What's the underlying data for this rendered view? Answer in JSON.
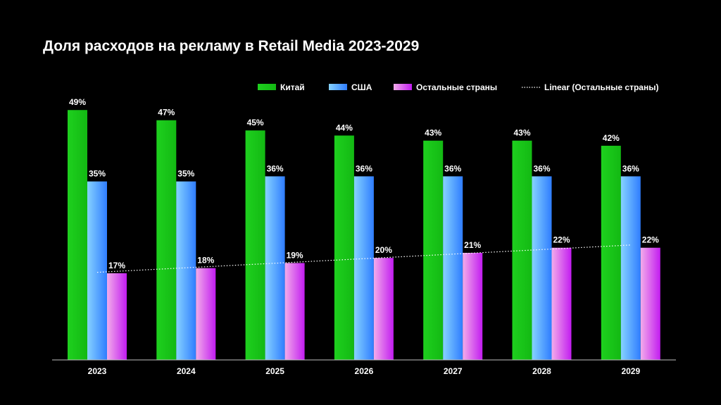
{
  "title": "Доля расходов на рекламу в Retail Media 2023-2029",
  "chart_data": {
    "type": "bar",
    "title": "Доля расходов на рекламу в Retail Media 2023-2029",
    "categories": [
      "2023",
      "2024",
      "2025",
      "2026",
      "2027",
      "2028",
      "2029"
    ],
    "ylim": [
      0,
      50
    ],
    "grid": false,
    "legend_position": "top-right",
    "value_suffix": "%",
    "series": [
      {
        "name": "Китай",
        "values": [
          49,
          47,
          45,
          44,
          43,
          43,
          42
        ],
        "color": "#13b913",
        "color_light": "#1ed01e"
      },
      {
        "name": "США",
        "values": [
          35,
          35,
          36,
          36,
          36,
          36,
          36
        ],
        "color": "#2f7dff",
        "color_light": "#86d2ff"
      },
      {
        "name": "Остальные страны",
        "values": [
          17,
          18,
          19,
          20,
          21,
          22,
          22
        ],
        "color": "#c21cf0",
        "color_light": "#f2acea"
      }
    ],
    "trendline": {
      "name": "Linear (Остальные страны)",
      "series": "Остальные страны",
      "style": "dotted",
      "color": "#ffffff"
    }
  }
}
